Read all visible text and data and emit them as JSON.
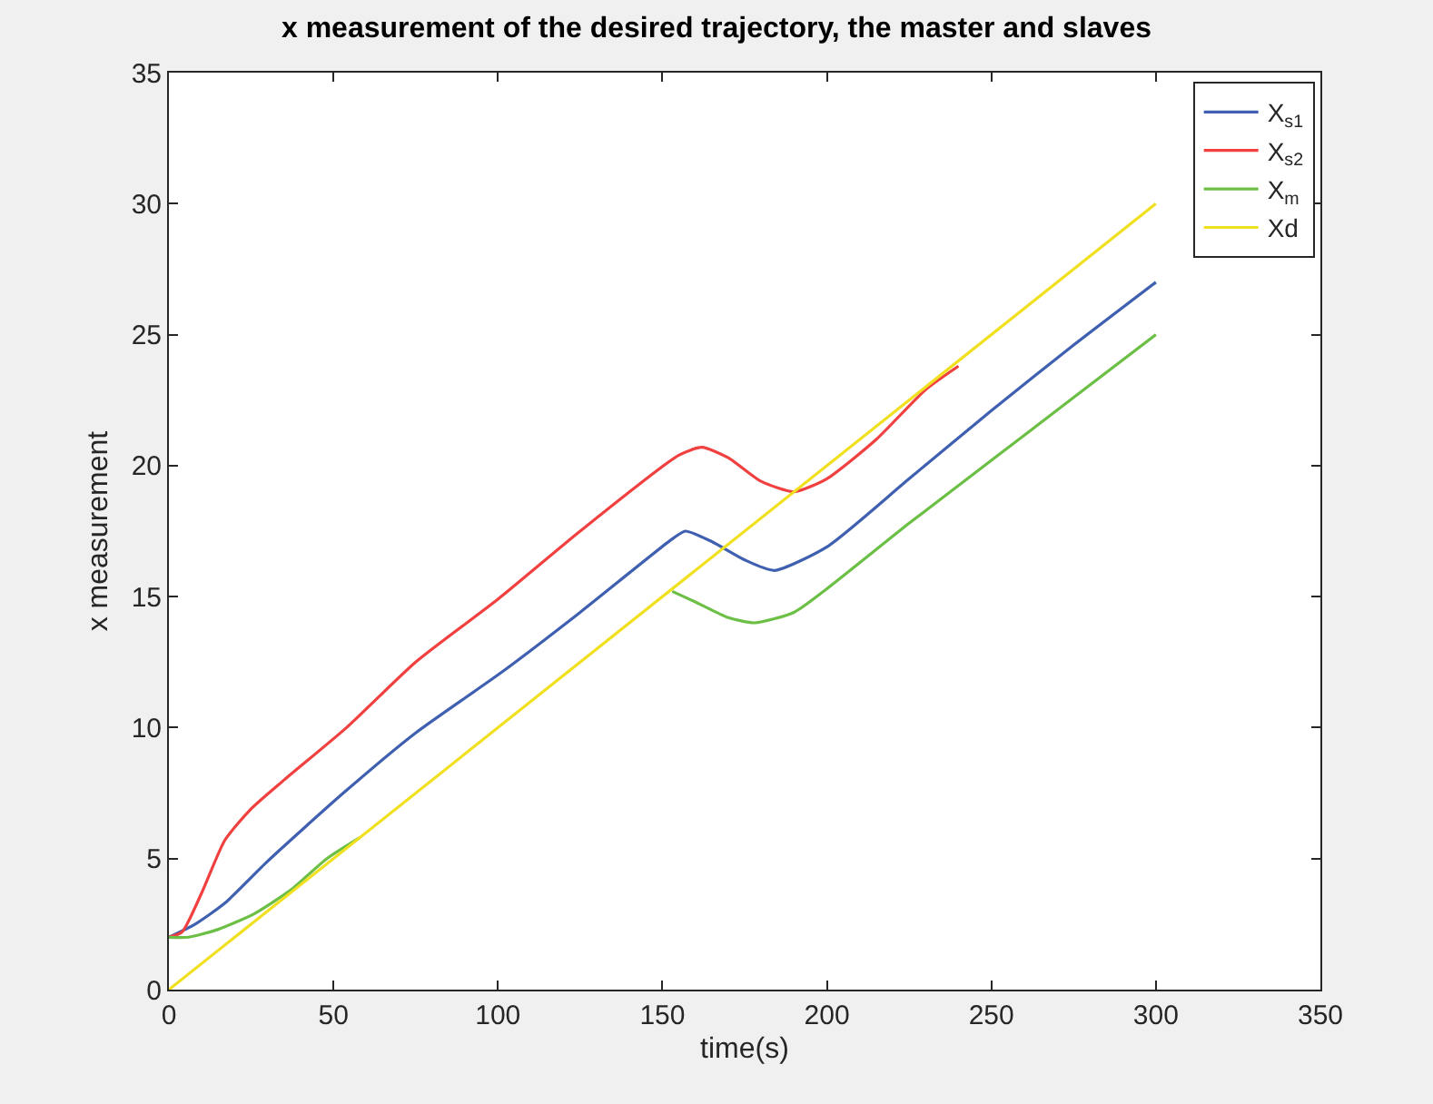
{
  "chart_data": {
    "type": "line",
    "title": "x measurement of the desired trajectory, the master and slaves",
    "xlabel": "time(s)",
    "ylabel": "x measurement",
    "xlim": [
      0,
      350
    ],
    "xticks": [
      0,
      50,
      100,
      150,
      200,
      250,
      300,
      350
    ],
    "ylim": [
      0,
      35
    ],
    "yticks": [
      0,
      5,
      10,
      15,
      20,
      25,
      30,
      35
    ],
    "legend": "top right",
    "series": [
      {
        "name": "X$_{s1}$",
        "color": "#3f5fb0",
        "x": [
          0,
          8,
          17,
          30,
          53,
          75,
          101,
          125,
          153,
          157,
          165,
          175,
          184,
          200,
          225,
          250,
          275,
          300
        ],
        "values": [
          2,
          2.5,
          3.3,
          4.9,
          7.5,
          9.8,
          12.1,
          14.4,
          17.2,
          17.5,
          17.1,
          16.4,
          16.0,
          16.9,
          19.5,
          22.1,
          24.6,
          27
        ]
      },
      {
        "name": "X$_{s2}$",
        "color": "#f0403f",
        "x": [
          0,
          4,
          10,
          17,
          25,
          35,
          54,
          75,
          100,
          125,
          155,
          162,
          170,
          180,
          190,
          200,
          215,
          230,
          240
        ],
        "values": [
          2,
          2.2,
          3.7,
          5.7,
          6.9,
          8.0,
          10.0,
          12.5,
          14.9,
          17.5,
          20.4,
          20.7,
          20.3,
          19.4,
          19.0,
          19.5,
          21.0,
          22.9,
          23.8
        ]
      },
      {
        "name": "X$_{m}$",
        "color": "#6cbf45",
        "x": [
          0,
          6,
          15,
          26,
          37,
          48,
          58,
          100,
          153,
          160,
          170,
          178,
          190,
          200,
          225,
          250,
          275,
          300
        ],
        "values": [
          2,
          2.0,
          2.3,
          2.9,
          3.8,
          5.0,
          5.8,
          null,
          15.2,
          14.8,
          14.2,
          14.0,
          14.4,
          15.3,
          17.8,
          20.2,
          22.6,
          25
        ]
      },
      {
        "name": "Xd",
        "color": "#f0e020",
        "x": [
          0,
          300
        ],
        "values": [
          0,
          30
        ]
      }
    ]
  }
}
